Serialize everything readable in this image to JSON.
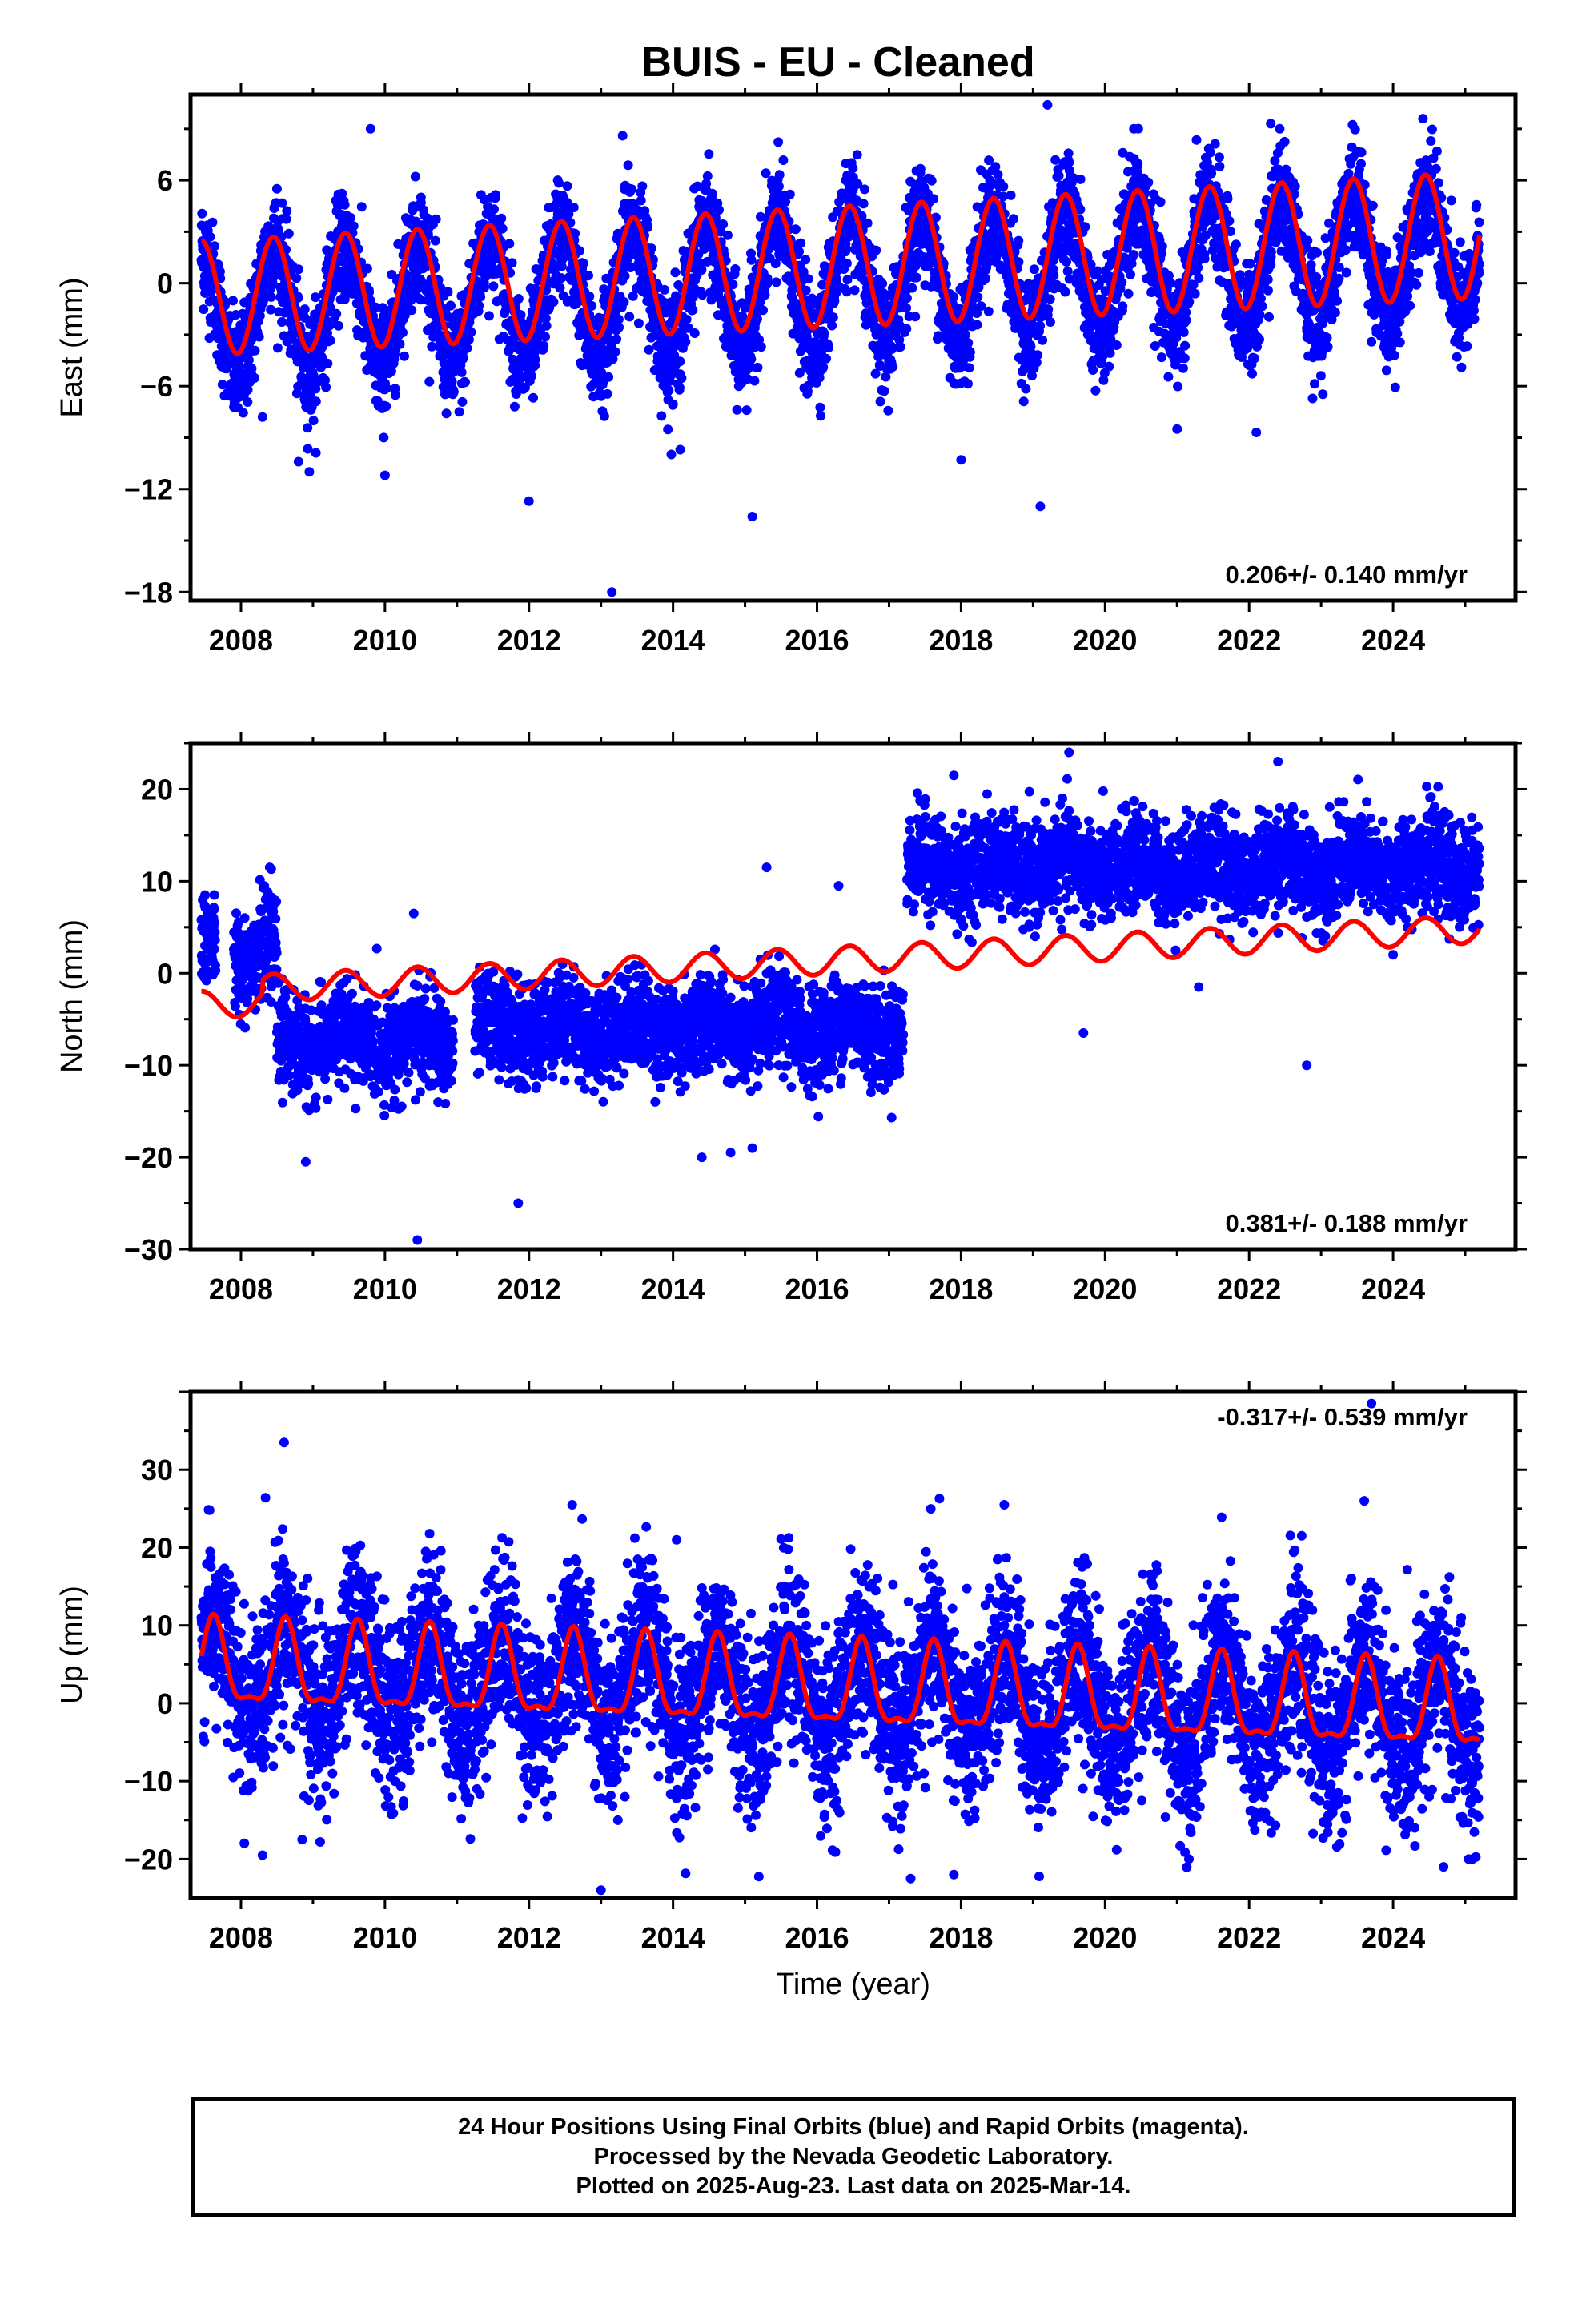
{
  "title": "BUIS  - EU - Cleaned",
  "colors": {
    "points": "#0000ff",
    "model": "#ff0000",
    "axis": "#000000"
  },
  "chart_data": [
    {
      "type": "scatter",
      "panel": "east",
      "ylabel": "East (mm)",
      "xlabel": "",
      "xlim": [
        2007.3,
        2025.7
      ],
      "ylim": [
        -18.5,
        11
      ],
      "yticks": [
        -18,
        -12,
        -6,
        0,
        6
      ],
      "xticks": [
        2008,
        2010,
        2012,
        2014,
        2016,
        2018,
        2020,
        2022,
        2024
      ],
      "rate_label": "0.206+/- 0.140 mm/yr",
      "data_range": [
        2007.45,
        2025.2
      ],
      "segments": [
        {
          "start": 2007.45,
          "end": 2025.2,
          "center": 0.0
        }
      ],
      "trend": 0.206,
      "annual_amplitude": 3.6,
      "annual_phase_peak": 0.45,
      "model_amplitude_range": [
        3.4,
        3.3
      ],
      "noise": 1.6,
      "outliers": [
        [
          2008.3,
          -7.8
        ],
        [
          2008.8,
          -10.4
        ],
        [
          2008.95,
          -11.0
        ],
        [
          2009.8,
          9.0
        ],
        [
          2010.0,
          -11.2
        ],
        [
          2012.0,
          -12.7
        ],
        [
          2013.15,
          -18.0
        ],
        [
          2013.3,
          8.6
        ],
        [
          2014.1,
          -9.7
        ],
        [
          2015.1,
          -13.6
        ],
        [
          2018.0,
          -10.3
        ],
        [
          2019.1,
          -13.0
        ],
        [
          2019.2,
          10.4
        ],
        [
          2020.4,
          9.0
        ],
        [
          2021.0,
          -8.5
        ],
        [
          2022.1,
          -8.7
        ],
        [
          2022.3,
          9.3
        ]
      ],
      "sample_points": [
        [
          2007.6,
          1.0
        ],
        [
          2008.5,
          5.5
        ],
        [
          2009.4,
          4.0
        ],
        [
          2010.5,
          5.0
        ],
        [
          2011.5,
          2.0
        ],
        [
          2012.4,
          6.0
        ],
        [
          2013.4,
          5.5
        ],
        [
          2014.4,
          4.0
        ],
        [
          2015.4,
          5.0
        ],
        [
          2016.4,
          6.0
        ],
        [
          2017.4,
          4.5
        ],
        [
          2018.4,
          6.0
        ],
        [
          2019.4,
          5.0
        ],
        [
          2020.4,
          5.5
        ],
        [
          2021.4,
          6.0
        ],
        [
          2022.4,
          6.5
        ],
        [
          2023.4,
          6.0
        ],
        [
          2024.4,
          6.5
        ]
      ]
    },
    {
      "type": "scatter",
      "panel": "north",
      "ylabel": "North (mm)",
      "xlabel": "",
      "xlim": [
        2007.3,
        2025.7
      ],
      "ylim": [
        -30,
        25
      ],
      "yticks": [
        -30,
        -20,
        -10,
        0,
        10,
        20
      ],
      "xticks": [
        2008,
        2010,
        2012,
        2014,
        2016,
        2018,
        2020,
        2022,
        2024
      ],
      "rate_label": "0.381+/- 0.188 mm/yr",
      "data_range": [
        2007.45,
        2025.2
      ],
      "segments": [
        {
          "start": 2007.45,
          "end": 2007.65,
          "center": 3.0
        },
        {
          "start": 2007.9,
          "end": 2008.5,
          "center": 2.0
        },
        {
          "start": 2008.5,
          "end": 2010.95,
          "center": -7.5
        },
        {
          "start": 2011.25,
          "end": 2017.2,
          "center": -6.0
        },
        {
          "start": 2017.25,
          "end": 2025.2,
          "center": 11.5
        }
      ],
      "trend": 0.381,
      "annual_amplitude": 1.3,
      "annual_phase_peak": 0.45,
      "model_offset": -1.5,
      "noise": 2.6,
      "outliers": [
        [
          2007.5,
          8.5
        ],
        [
          2008.4,
          11.5
        ],
        [
          2008.9,
          -20.5
        ],
        [
          2010.4,
          6.5
        ],
        [
          2010.45,
          -29.0
        ],
        [
          2011.85,
          -25.0
        ],
        [
          2014.4,
          -20.0
        ],
        [
          2014.8,
          -19.5
        ],
        [
          2015.1,
          -19.0
        ],
        [
          2015.3,
          11.5
        ],
        [
          2016.3,
          9.5
        ],
        [
          2017.9,
          21.5
        ],
        [
          2019.5,
          24.0
        ],
        [
          2019.7,
          -6.5
        ],
        [
          2021.3,
          -1.5
        ],
        [
          2022.8,
          -10.0
        ],
        [
          2022.4,
          23.0
        ],
        [
          2024.0,
          2.0
        ]
      ],
      "sample_points": [
        [
          2007.5,
          3.0
        ],
        [
          2008.0,
          2.0
        ],
        [
          2009.0,
          -8.0
        ],
        [
          2010.5,
          -7.0
        ],
        [
          2012.0,
          -7.0
        ],
        [
          2014.0,
          -6.0
        ],
        [
          2016.0,
          -5.0
        ],
        [
          2017.5,
          11.0
        ],
        [
          2019.0,
          11.0
        ],
        [
          2021.0,
          11.5
        ],
        [
          2023.0,
          12.0
        ],
        [
          2025.0,
          13.0
        ]
      ]
    },
    {
      "type": "scatter",
      "panel": "up",
      "ylabel": "Up (mm)",
      "xlabel": "Time (year)",
      "xlim": [
        2007.3,
        2025.7
      ],
      "ylim": [
        -25,
        40
      ],
      "yticks": [
        -20,
        -10,
        0,
        10,
        20,
        30
      ],
      "xticks": [
        2008,
        2010,
        2012,
        2014,
        2016,
        2018,
        2020,
        2022,
        2024
      ],
      "rate_label": "-0.317+/- 0.539 mm/yr",
      "data_range": [
        2007.45,
        2025.2
      ],
      "segments": [
        {
          "start": 2007.45,
          "end": 2025.2,
          "center": 1.5
        }
      ],
      "trend": -0.317,
      "annual_amplitude": 6.0,
      "annual_phase_peak": 0.62,
      "model_offset": 4.0,
      "noise": 5.5,
      "outliers": [
        [
          2008.6,
          33.5
        ],
        [
          2008.3,
          -19.5
        ],
        [
          2008.85,
          -17.5
        ],
        [
          2009.1,
          -17.8
        ],
        [
          2012.6,
          25.5
        ],
        [
          2013.0,
          -24.0
        ],
        [
          2014.05,
          21.0
        ],
        [
          2017.3,
          -22.5
        ],
        [
          2017.7,
          26.3
        ],
        [
          2017.9,
          -22.0
        ],
        [
          2018.6,
          25.5
        ],
        [
          2023.6,
          26.0
        ],
        [
          2023.7,
          38.5
        ],
        [
          2024.7,
          -21.0
        ],
        [
          2025.1,
          -20.0
        ]
      ],
      "sample_points": [
        [
          2007.6,
          10.0
        ],
        [
          2008.6,
          18.0
        ],
        [
          2009.6,
          15.0
        ],
        [
          2010.6,
          13.0
        ],
        [
          2011.6,
          12.0
        ],
        [
          2012.6,
          14.0
        ],
        [
          2013.6,
          10.0
        ],
        [
          2014.6,
          12.0
        ],
        [
          2015.6,
          10.0
        ],
        [
          2016.6,
          11.0
        ],
        [
          2017.6,
          9.0
        ],
        [
          2018.6,
          10.0
        ],
        [
          2019.6,
          8.0
        ],
        [
          2020.6,
          9.0
        ],
        [
          2021.6,
          10.0
        ],
        [
          2022.6,
          8.0
        ],
        [
          2023.6,
          9.0
        ],
        [
          2024.6,
          7.0
        ]
      ]
    }
  ],
  "footer": {
    "line1": "24 Hour Positions Using Final Orbits (blue) and Rapid Orbits (magenta).",
    "line2": "Processed by the Nevada Geodetic Laboratory.",
    "line3": "Plotted on 2025-Aug-23. Last data on 2025-Mar-14."
  }
}
